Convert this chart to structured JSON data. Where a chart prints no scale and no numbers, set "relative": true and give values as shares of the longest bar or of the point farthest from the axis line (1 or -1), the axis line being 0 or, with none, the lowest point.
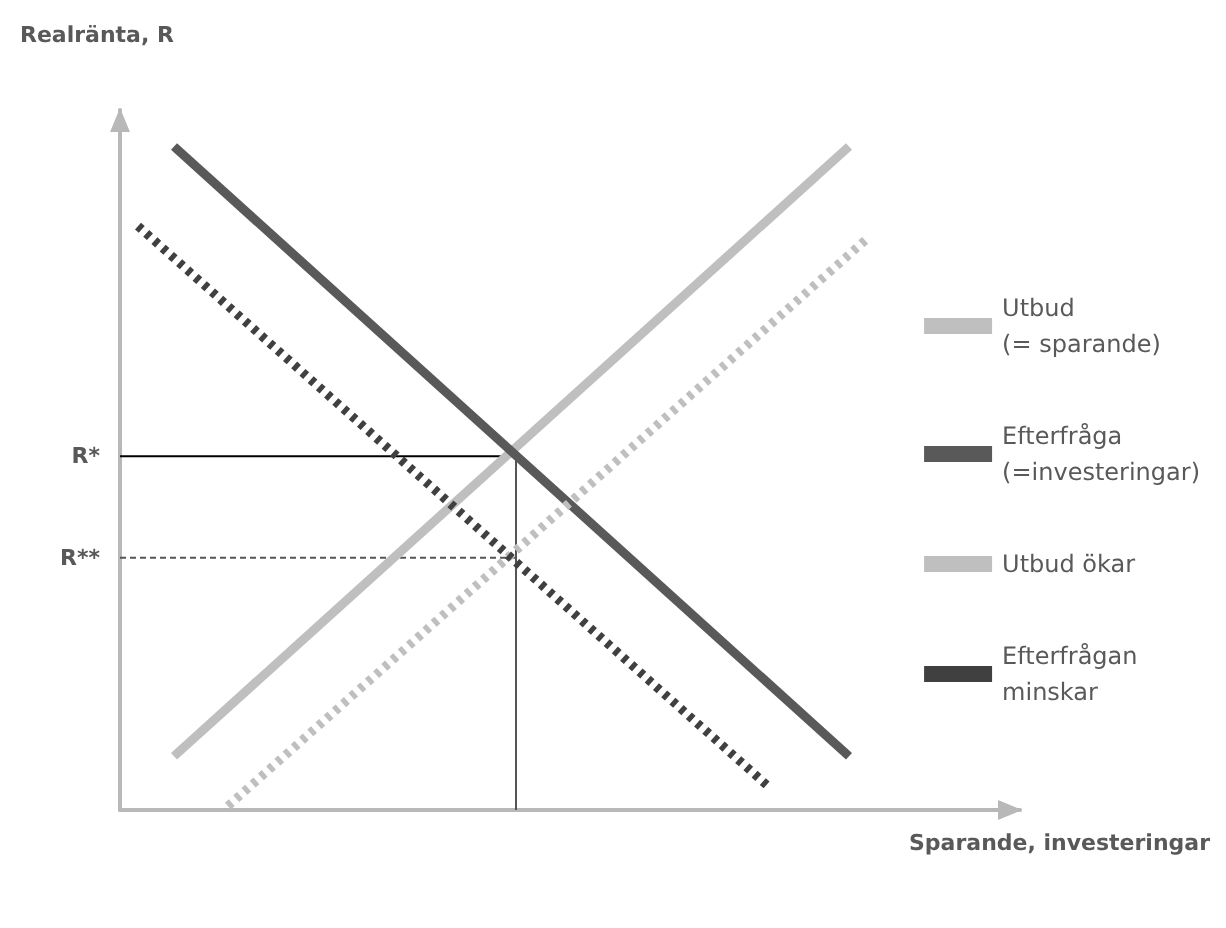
{
  "chart_data": {
    "type": "line",
    "relative": true,
    "xlabel": "Sparande, investeringar",
    "ylabel": "Realränta, R",
    "grid": false,
    "legend": "right",
    "categories": [
      null,
      null,
      null,
      null,
      null,
      null,
      null,
      null,
      null,
      null,
      null,
      null,
      null,
      null,
      null,
      null,
      null,
      null,
      null,
      null,
      null,
      null,
      null,
      null,
      null,
      null,
      null,
      null,
      null,
      null,
      null,
      null,
      null,
      null,
      null,
      null,
      null,
      null,
      null,
      null,
      null,
      null,
      null,
      null,
      null,
      null,
      null,
      null,
      null,
      null,
      null,
      null,
      null,
      null,
      null,
      null,
      null,
      null,
      null,
      null,
      null,
      null,
      null,
      null,
      null,
      null,
      null,
      null,
      null,
      null,
      null,
      null,
      null,
      null,
      null,
      null,
      null,
      null,
      null,
      null,
      null,
      null,
      null,
      null,
      null,
      null,
      null,
      null,
      null,
      null,
      null,
      null,
      null,
      null,
      null,
      null,
      null,
      null,
      null,
      null,
      null
    ],
    "series": [
      {
        "name": "Utbud\n(= sparande)",
        "color": "#bfbfbf",
        "line_style": "solid",
        "values": [
          null,
          null,
          null,
          null,
          null,
          null,
          0.081,
          null,
          null,
          null,
          null,
          null,
          null,
          null,
          null,
          null,
          null,
          null,
          null,
          null,
          null,
          null,
          null,
          null,
          null,
          null,
          null,
          null,
          null,
          null,
          null,
          null,
          null,
          null,
          null,
          null,
          null,
          null,
          null,
          null,
          null,
          null,
          null,
          null,
          null,
          null,
          null,
          null,
          null,
          null,
          null,
          null,
          null,
          null,
          null,
          null,
          null,
          null,
          null,
          null,
          null,
          null,
          null,
          null,
          null,
          null,
          null,
          null,
          null,
          null,
          null,
          null,
          null,
          null,
          null,
          null,
          null,
          null,
          null,
          null,
          null,
          1.0,
          null,
          null,
          null,
          null,
          null,
          null,
          null,
          null,
          null,
          null,
          null,
          null,
          null,
          null,
          null,
          null,
          null,
          null,
          null
        ]
      },
      {
        "name": "Efterfråga\n(=investeringar)",
        "color": "#595959",
        "line_style": "solid",
        "values": [
          null,
          null,
          null,
          null,
          null,
          null,
          1.0,
          null,
          null,
          null,
          null,
          null,
          null,
          null,
          null,
          null,
          null,
          null,
          null,
          null,
          null,
          null,
          null,
          null,
          null,
          null,
          null,
          null,
          null,
          null,
          null,
          null,
          null,
          null,
          null,
          null,
          null,
          null,
          null,
          null,
          null,
          null,
          null,
          null,
          null,
          null,
          null,
          null,
          null,
          null,
          null,
          null,
          null,
          null,
          null,
          null,
          null,
          null,
          null,
          null,
          null,
          null,
          null,
          null,
          null,
          null,
          null,
          null,
          null,
          null,
          null,
          null,
          null,
          null,
          null,
          null,
          null,
          null,
          null,
          null,
          null,
          0.081,
          null,
          null,
          null,
          null,
          null,
          null,
          null,
          null,
          null,
          null,
          null,
          null,
          null,
          null,
          null,
          null,
          null,
          null,
          null
        ]
      },
      {
        "name": "Utbud ökar",
        "color": "#bfbfbf",
        "line_style": "dotted",
        "values": [
          null,
          null,
          null,
          null,
          null,
          null,
          null,
          null,
          null,
          null,
          null,
          null,
          0.006,
          null,
          null,
          null,
          null,
          null,
          null,
          null,
          null,
          null,
          null,
          null,
          null,
          null,
          null,
          null,
          null,
          null,
          null,
          null,
          null,
          null,
          null,
          null,
          null,
          null,
          null,
          null,
          null,
          null,
          null,
          null,
          null,
          null,
          null,
          null,
          null,
          null,
          null,
          null,
          null,
          null,
          null,
          null,
          null,
          null,
          null,
          null,
          null,
          null,
          null,
          null,
          null,
          null,
          null,
          null,
          null,
          null,
          null,
          null,
          null,
          null,
          null,
          null,
          null,
          null,
          null,
          null,
          null,
          null,
          null,
          0.861,
          null,
          null,
          null,
          null,
          null,
          null,
          null,
          null,
          null,
          null,
          null,
          null,
          null,
          null,
          null,
          null,
          null
        ]
      },
      {
        "name": "Efterfrågan\nminskar",
        "color": "#404040",
        "line_style": "dotted",
        "values": [
          null,
          null,
          0.88,
          null,
          null,
          null,
          null,
          null,
          null,
          null,
          null,
          null,
          null,
          null,
          null,
          null,
          null,
          null,
          null,
          null,
          null,
          null,
          null,
          null,
          null,
          null,
          null,
          null,
          null,
          null,
          null,
          null,
          null,
          null,
          null,
          null,
          null,
          null,
          null,
          null,
          null,
          null,
          null,
          null,
          null,
          null,
          null,
          null,
          null,
          null,
          null,
          null,
          null,
          null,
          null,
          null,
          null,
          null,
          null,
          null,
          null,
          null,
          null,
          null,
          null,
          null,
          null,
          null,
          null,
          null,
          null,
          null,
          0.036,
          null,
          null,
          null,
          null,
          null,
          null,
          null,
          null,
          null,
          null,
          null,
          null,
          null,
          null,
          null,
          null,
          null,
          null,
          null,
          null,
          null,
          null,
          null,
          null,
          null,
          null,
          null,
          null
        ]
      }
    ],
    "ref_lines": [
      {
        "axis": "y",
        "value": 0.533,
        "label": "R*",
        "color": "#000000",
        "line_style": "solid"
      },
      {
        "axis": "y",
        "value": 0.38,
        "label": "R**",
        "color": "#555555",
        "line_style": "dotted"
      }
    ]
  }
}
